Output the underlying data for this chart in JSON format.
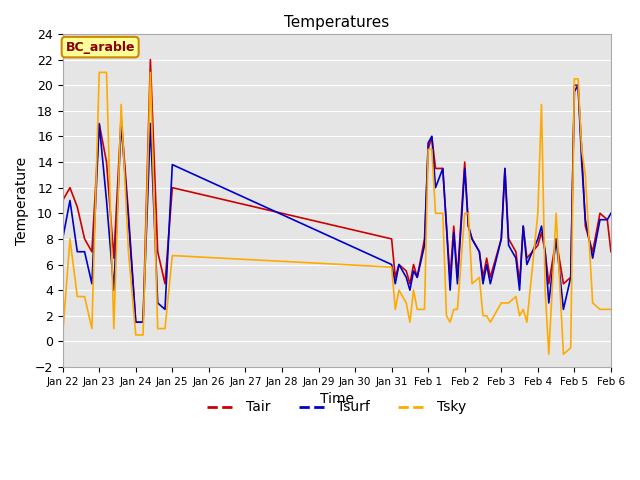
{
  "title": "Temperatures",
  "xlabel": "Time",
  "ylabel": "Temperature",
  "ylim": [
    -2,
    24
  ],
  "annotation": "BC_arable",
  "legend": [
    "Tair",
    "Tsurf",
    "Tsky"
  ],
  "colors": {
    "Tair": "#cc0000",
    "Tsurf": "#0000cc",
    "Tsky": "#ffaa00"
  },
  "x_labels": [
    "Jan 22",
    "Jan 23",
    "Jan 24",
    "Jan 25",
    "Jan 26",
    "Jan 27",
    "Jan 28",
    "Jan 29",
    "Jan 30",
    "Jan 31",
    "Feb 1",
    "Feb 2",
    "Feb 3",
    "Feb 4",
    "Feb 5",
    "Feb 6"
  ],
  "background_color": "#e5e5e5",
  "grid_color": "#ffffff",
  "annotation_bg": "#ffff99",
  "annotation_border": "#cc8800",
  "annotation_text_color": "#8b0000",
  "Tair_x": [
    0,
    0.2,
    0.4,
    0.6,
    0.8,
    1.0,
    1.2,
    1.4,
    1.6,
    1.8,
    2.0,
    2.2,
    2.4,
    2.6,
    2.8,
    3.0,
    3.0,
    9.0,
    9.0,
    9.1,
    9.2,
    9.4,
    9.5,
    9.6,
    9.7,
    9.9,
    10.0,
    10.1,
    10.2,
    10.4,
    10.5,
    10.6,
    10.7,
    10.8,
    11.0,
    11.1,
    11.2,
    11.4,
    11.5,
    11.6,
    11.7,
    12.0,
    12.1,
    12.2,
    12.4,
    12.5,
    12.6,
    12.7,
    13.0,
    13.1,
    13.2,
    13.3,
    13.5,
    13.7,
    13.9,
    14.0,
    14.1,
    14.2,
    14.3,
    14.5,
    14.7,
    14.9,
    15.0
  ],
  "Tair_y": [
    11,
    12,
    10.5,
    8,
    7,
    17,
    14,
    6.5,
    17.5,
    10,
    1.5,
    1.5,
    22,
    7,
    4.5,
    12,
    12,
    8,
    8,
    5,
    6,
    5.5,
    4.5,
    6,
    5,
    8,
    15,
    16,
    13.5,
    13.5,
    9,
    5,
    9,
    5,
    14,
    9,
    8,
    7,
    5,
    6.5,
    5,
    8,
    13.5,
    8,
    7,
    4.5,
    9,
    6.5,
    7.5,
    8.5,
    7,
    4.5,
    8,
    4.5,
    5,
    20,
    20,
    15,
    9,
    7,
    10,
    9.5,
    7
  ],
  "Tsurf_x": [
    0,
    0.2,
    0.4,
    0.6,
    0.8,
    1.0,
    1.2,
    1.4,
    1.6,
    1.8,
    2.0,
    2.2,
    2.4,
    2.6,
    2.8,
    3.0,
    3.0,
    9.0,
    9.0,
    9.1,
    9.2,
    9.4,
    9.5,
    9.6,
    9.7,
    9.9,
    10.0,
    10.1,
    10.2,
    10.4,
    10.5,
    10.6,
    10.7,
    10.8,
    11.0,
    11.1,
    11.2,
    11.4,
    11.5,
    11.6,
    11.7,
    12.0,
    12.1,
    12.2,
    12.4,
    12.5,
    12.6,
    12.7,
    13.0,
    13.1,
    13.2,
    13.3,
    13.5,
    13.7,
    13.9,
    14.0,
    14.1,
    14.2,
    14.3,
    14.5,
    14.7,
    14.9,
    15.0
  ],
  "Tsurf_y": [
    8,
    11,
    7,
    7,
    4.5,
    17,
    11,
    4,
    17,
    9.5,
    1.5,
    1.5,
    17,
    3,
    2.5,
    13.8,
    13.8,
    6,
    6,
    4.5,
    6,
    5,
    4,
    5.5,
    5,
    7.5,
    15.5,
    16,
    12,
    13.5,
    9,
    4,
    8.5,
    4.5,
    13.5,
    9,
    8,
    7,
    4.5,
    6,
    4.5,
    8,
    13.5,
    7.5,
    6.5,
    4,
    9,
    6,
    8,
    9,
    7,
    3,
    8,
    2.5,
    5,
    19.5,
    20,
    14,
    9.5,
    6.5,
    9.5,
    9.5,
    10
  ],
  "Tsky_x": [
    0,
    0.2,
    0.4,
    0.6,
    0.8,
    1.0,
    1.2,
    1.4,
    1.6,
    1.8,
    2.0,
    2.2,
    2.4,
    2.6,
    2.8,
    3.0,
    3.0,
    9.0,
    9.0,
    9.1,
    9.2,
    9.4,
    9.5,
    9.6,
    9.7,
    9.9,
    10.0,
    10.1,
    10.2,
    10.4,
    10.5,
    10.6,
    10.7,
    10.8,
    11.0,
    11.1,
    11.2,
    11.4,
    11.5,
    11.6,
    11.7,
    12.0,
    12.1,
    12.2,
    12.4,
    12.5,
    12.6,
    12.7,
    13.0,
    13.1,
    13.2,
    13.3,
    13.5,
    13.7,
    13.9,
    14.0,
    14.1,
    14.2,
    14.3,
    14.5,
    14.7,
    14.9,
    15.0
  ],
  "Tsky_y": [
    0.5,
    8,
    3.5,
    3.5,
    1,
    21,
    21,
    1,
    18.5,
    7,
    0.5,
    0.5,
    21,
    1,
    1,
    6.7,
    6.7,
    5.8,
    5.8,
    2.5,
    4,
    3,
    1.5,
    4,
    2.5,
    2.5,
    15,
    15,
    10,
    10,
    2,
    1.5,
    2.5,
    2.5,
    10,
    10,
    4.5,
    5,
    2,
    2,
    1.5,
    3,
    3,
    3,
    3.5,
    2,
    2.5,
    1.5,
    10,
    18.5,
    4,
    -1,
    10,
    -1,
    -0.5,
    20.5,
    20.5,
    15,
    13,
    3,
    2.5,
    2.5,
    2.5
  ]
}
